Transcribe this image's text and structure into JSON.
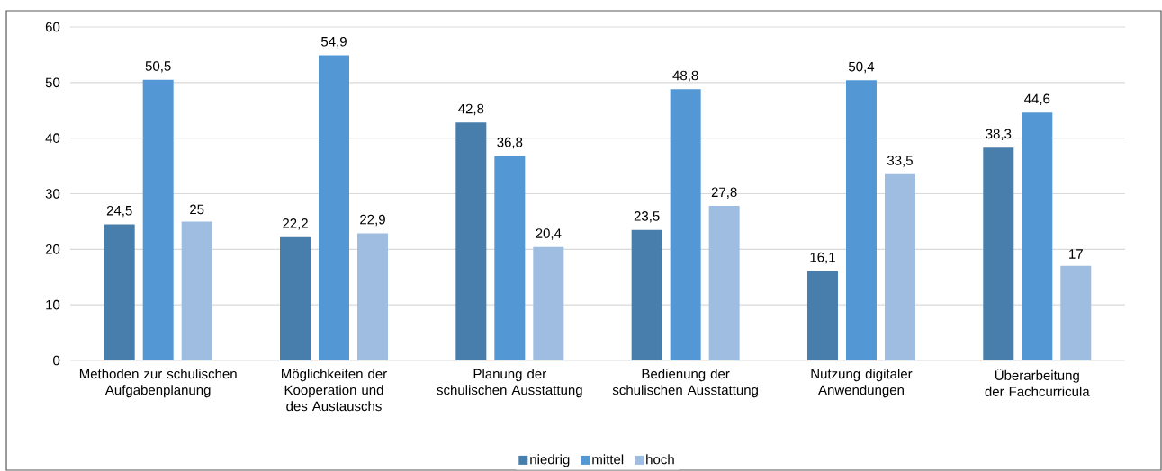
{
  "chart_data": {
    "type": "bar",
    "categories": [
      "Methoden zur schulischen Aufgabenplanung",
      "Möglichkeiten der Kooperation und des Austauschs",
      "Planung der schulischen Ausstattung",
      "Bedienung der schulischen Ausstattung",
      "Nutzung digitaler Anwendungen",
      "Überarbeitung der Fachcurricula"
    ],
    "series": [
      {
        "name": "niedrig",
        "color": "#487eac",
        "values": [
          24.5,
          22.2,
          42.8,
          23.5,
          16.1,
          38.3
        ],
        "value_labels": [
          "24,5",
          "22,2",
          "42,8",
          "23,5",
          "16,1",
          "38,3"
        ]
      },
      {
        "name": "mittel",
        "color": "#5398d4",
        "values": [
          50.5,
          54.9,
          36.8,
          48.8,
          50.4,
          44.6
        ],
        "value_labels": [
          "50,5",
          "54,9",
          "36,8",
          "48,8",
          "50,4",
          "44,6"
        ]
      },
      {
        "name": "hoch",
        "color": "#9ebde0",
        "values": [
          25,
          22.9,
          20.4,
          27.8,
          33.5,
          17
        ],
        "value_labels": [
          "25",
          "22,9",
          "20,4",
          "27,8",
          "33,5",
          "17"
        ]
      }
    ],
    "ylim": [
      0,
      60
    ],
    "yticks": [
      0,
      10,
      20,
      30,
      40,
      50,
      60
    ],
    "grid": "y",
    "legend": "bottom"
  }
}
